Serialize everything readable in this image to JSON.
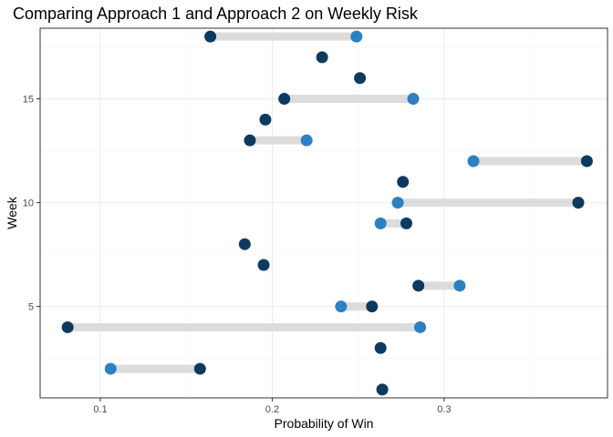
{
  "chart_data": {
    "type": "dumbbell",
    "title": "Comparing Approach 1 and Approach 2 on Weekly Risk",
    "xlabel": "Probability of Win",
    "ylabel": "Week",
    "xlim": [
      0.065,
      0.395
    ],
    "ylim": [
      0.6,
      18.4
    ],
    "x_ticks": [
      {
        "value": 0.1,
        "label": "0.1"
      },
      {
        "value": 0.2,
        "label": "0.2"
      },
      {
        "value": 0.3,
        "label": "0.3"
      }
    ],
    "y_ticks": [
      {
        "value": 5,
        "label": "5"
      },
      {
        "value": 10,
        "label": "10"
      },
      {
        "value": 15,
        "label": "15"
      }
    ],
    "grid": true,
    "colors": {
      "approach_dark": "#0e3a5f",
      "approach_light": "#2c80c4",
      "segment": "#dcdcdc",
      "grid_major": "#ebebeb",
      "grid_minor": "#f4f4f4",
      "panel_border": "#333333"
    },
    "weeks": [
      {
        "week": 1,
        "dark": 0.264,
        "light": null
      },
      {
        "week": 2,
        "dark": 0.158,
        "light": 0.106
      },
      {
        "week": 3,
        "dark": 0.263,
        "light": null
      },
      {
        "week": 4,
        "dark": 0.081,
        "light": 0.286
      },
      {
        "week": 5,
        "dark": 0.258,
        "light": 0.24
      },
      {
        "week": 6,
        "dark": 0.285,
        "light": 0.309
      },
      {
        "week": 7,
        "dark": 0.195,
        "light": null
      },
      {
        "week": 8,
        "dark": 0.184,
        "light": null
      },
      {
        "week": 9,
        "dark": 0.278,
        "light": 0.263
      },
      {
        "week": 10,
        "dark": 0.378,
        "light": 0.273
      },
      {
        "week": 11,
        "dark": 0.276,
        "light": null
      },
      {
        "week": 12,
        "dark": 0.383,
        "light": 0.317
      },
      {
        "week": 13,
        "dark": 0.187,
        "light": 0.22
      },
      {
        "week": 14,
        "dark": 0.196,
        "light": null
      },
      {
        "week": 15,
        "dark": 0.207,
        "light": 0.282
      },
      {
        "week": 16,
        "dark": 0.251,
        "light": null
      },
      {
        "week": 17,
        "dark": 0.229,
        "light": null
      },
      {
        "week": 18,
        "dark": 0.164,
        "light": 0.249
      }
    ]
  }
}
